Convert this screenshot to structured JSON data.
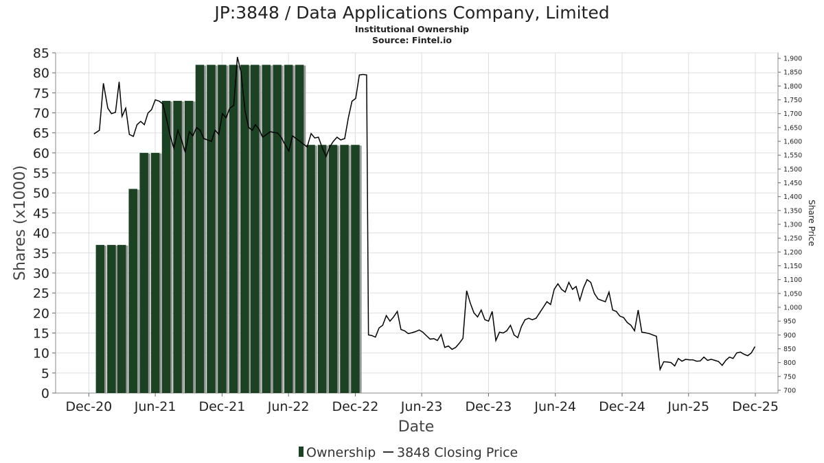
{
  "chart_data": {
    "type": "bar",
    "title": "JP:3848 / Data Applications Company, Limited",
    "subtitle1": "Institutional Ownership",
    "subtitle2": "Source: Fintel.io",
    "xlabel": "Date",
    "ylabel": "Shares (x1000)",
    "y2label": "Share Price",
    "x_ticks": [
      "Dec-20",
      "Jun-21",
      "Dec-21",
      "Jun-22",
      "Dec-22",
      "Jun-23",
      "Dec-23",
      "Jun-24",
      "Dec-24",
      "Jun-25",
      "Dec-25"
    ],
    "y_ticks": [
      "0",
      "5",
      "10",
      "15",
      "20",
      "25",
      "30",
      "35",
      "40",
      "45",
      "50",
      "55",
      "60",
      "65",
      "70",
      "75",
      "80",
      "85"
    ],
    "y2_ticks": [
      "700",
      "750",
      "800",
      "850",
      "900",
      "950",
      "1,000",
      "1,050",
      "1,100",
      "1,150",
      "1,200",
      "1,250",
      "1,300",
      "1,350",
      "1,400",
      "1,450",
      "1,500",
      "1,550",
      "1,600",
      "1,650",
      "1,700",
      "1,750",
      "1,800",
      "1,850",
      "1,900"
    ],
    "ylim": [
      0,
      85
    ],
    "y2lim": [
      690,
      1920
    ],
    "grid": true,
    "legend_position": "bottom",
    "legend": [
      "Ownership",
      "3848 Closing Price"
    ],
    "colors": {
      "bar": "#1a4223",
      "bar_shadow": "#9a9a9a",
      "line": "#000000",
      "grid": "#dddddd"
    },
    "ownership": [
      {
        "date": "2021-01-01",
        "value": 37
      },
      {
        "date": "2021-02-01",
        "value": 37
      },
      {
        "date": "2021-03-01",
        "value": 37
      },
      {
        "date": "2021-04-01",
        "value": 51
      },
      {
        "date": "2021-05-01",
        "value": 60
      },
      {
        "date": "2021-06-01",
        "value": 60
      },
      {
        "date": "2021-07-01",
        "value": 73
      },
      {
        "date": "2021-08-01",
        "value": 73
      },
      {
        "date": "2021-09-01",
        "value": 73
      },
      {
        "date": "2021-10-01",
        "value": 82
      },
      {
        "date": "2021-11-01",
        "value": 82
      },
      {
        "date": "2021-12-01",
        "value": 82
      },
      {
        "date": "2022-01-01",
        "value": 82
      },
      {
        "date": "2022-02-01",
        "value": 82
      },
      {
        "date": "2022-03-01",
        "value": 82
      },
      {
        "date": "2022-04-01",
        "value": 82
      },
      {
        "date": "2022-05-01",
        "value": 82
      },
      {
        "date": "2022-06-01",
        "value": 82
      },
      {
        "date": "2022-07-01",
        "value": 82
      },
      {
        "date": "2022-08-01",
        "value": 62
      },
      {
        "date": "2022-09-01",
        "value": 62
      },
      {
        "date": "2022-10-01",
        "value": 62
      },
      {
        "date": "2022-11-01",
        "value": 62
      },
      {
        "date": "2022-12-01",
        "value": 62
      }
    ],
    "price": [
      {
        "date": "2020-12-15",
        "value": 1627
      },
      {
        "date": "2020-12-30",
        "value": 1640
      },
      {
        "date": "2021-01-10",
        "value": 1810
      },
      {
        "date": "2021-01-22",
        "value": 1720
      },
      {
        "date": "2021-02-01",
        "value": 1700
      },
      {
        "date": "2021-02-12",
        "value": 1705
      },
      {
        "date": "2021-02-22",
        "value": 1815
      },
      {
        "date": "2021-03-02",
        "value": 1690
      },
      {
        "date": "2021-03-12",
        "value": 1720
      },
      {
        "date": "2021-03-22",
        "value": 1625
      },
      {
        "date": "2021-04-02",
        "value": 1618
      },
      {
        "date": "2021-04-12",
        "value": 1660
      },
      {
        "date": "2021-04-22",
        "value": 1672
      },
      {
        "date": "2021-05-02",
        "value": 1660
      },
      {
        "date": "2021-05-12",
        "value": 1702
      },
      {
        "date": "2021-05-22",
        "value": 1715
      },
      {
        "date": "2021-06-01",
        "value": 1750
      },
      {
        "date": "2021-06-12",
        "value": 1745
      },
      {
        "date": "2021-06-22",
        "value": 1735
      },
      {
        "date": "2021-07-02",
        "value": 1680
      },
      {
        "date": "2021-07-12",
        "value": 1620
      },
      {
        "date": "2021-07-22",
        "value": 1575
      },
      {
        "date": "2021-08-02",
        "value": 1640
      },
      {
        "date": "2021-08-12",
        "value": 1605
      },
      {
        "date": "2021-08-22",
        "value": 1560
      },
      {
        "date": "2021-09-02",
        "value": 1635
      },
      {
        "date": "2021-09-12",
        "value": 1620
      },
      {
        "date": "2021-09-22",
        "value": 1650
      },
      {
        "date": "2021-10-02",
        "value": 1640
      },
      {
        "date": "2021-10-12",
        "value": 1610
      },
      {
        "date": "2021-10-22",
        "value": 1605
      },
      {
        "date": "2021-11-02",
        "value": 1600
      },
      {
        "date": "2021-11-12",
        "value": 1640
      },
      {
        "date": "2021-11-22",
        "value": 1625
      },
      {
        "date": "2021-12-02",
        "value": 1700
      },
      {
        "date": "2021-12-12",
        "value": 1685
      },
      {
        "date": "2021-12-22",
        "value": 1720
      },
      {
        "date": "2022-01-02",
        "value": 1730
      },
      {
        "date": "2022-01-12",
        "value": 1905
      },
      {
        "date": "2022-01-22",
        "value": 1850
      },
      {
        "date": "2022-02-02",
        "value": 1710
      },
      {
        "date": "2022-02-12",
        "value": 1650
      },
      {
        "date": "2022-02-22",
        "value": 1640
      },
      {
        "date": "2022-03-02",
        "value": 1660
      },
      {
        "date": "2022-03-12",
        "value": 1645
      },
      {
        "date": "2022-03-22",
        "value": 1615
      },
      {
        "date": "2022-04-02",
        "value": 1625
      },
      {
        "date": "2022-04-12",
        "value": 1635
      },
      {
        "date": "2022-04-22",
        "value": 1632
      },
      {
        "date": "2022-05-02",
        "value": 1630
      },
      {
        "date": "2022-05-12",
        "value": 1615
      },
      {
        "date": "2022-05-22",
        "value": 1590
      },
      {
        "date": "2022-06-02",
        "value": 1565
      },
      {
        "date": "2022-06-12",
        "value": 1620
      },
      {
        "date": "2022-06-22",
        "value": 1610
      },
      {
        "date": "2022-07-02",
        "value": 1600
      },
      {
        "date": "2022-07-12",
        "value": 1590
      },
      {
        "date": "2022-07-22",
        "value": 1580
      },
      {
        "date": "2022-08-02",
        "value": 1628
      },
      {
        "date": "2022-08-12",
        "value": 1612
      },
      {
        "date": "2022-08-22",
        "value": 1615
      },
      {
        "date": "2022-09-02",
        "value": 1575
      },
      {
        "date": "2022-09-12",
        "value": 1545
      },
      {
        "date": "2022-09-22",
        "value": 1580
      },
      {
        "date": "2022-10-02",
        "value": 1600
      },
      {
        "date": "2022-10-12",
        "value": 1615
      },
      {
        "date": "2022-10-22",
        "value": 1605
      },
      {
        "date": "2022-11-02",
        "value": 1610
      },
      {
        "date": "2022-11-12",
        "value": 1685
      },
      {
        "date": "2022-11-22",
        "value": 1745
      },
      {
        "date": "2022-12-02",
        "value": 1755
      },
      {
        "date": "2022-12-12",
        "value": 1840
      },
      {
        "date": "2022-12-22",
        "value": 1842
      },
      {
        "date": "2023-01-01",
        "value": 1840
      },
      {
        "date": "2023-01-06",
        "value": 900
      },
      {
        "date": "2023-01-15",
        "value": 898
      },
      {
        "date": "2023-01-25",
        "value": 892
      },
      {
        "date": "2023-02-04",
        "value": 925
      },
      {
        "date": "2023-02-14",
        "value": 935
      },
      {
        "date": "2023-02-24",
        "value": 970
      },
      {
        "date": "2023-03-06",
        "value": 950
      },
      {
        "date": "2023-03-16",
        "value": 965
      },
      {
        "date": "2023-03-26",
        "value": 985
      },
      {
        "date": "2023-04-05",
        "value": 920
      },
      {
        "date": "2023-04-15",
        "value": 915
      },
      {
        "date": "2023-04-25",
        "value": 905
      },
      {
        "date": "2023-05-05",
        "value": 908
      },
      {
        "date": "2023-05-15",
        "value": 912
      },
      {
        "date": "2023-05-25",
        "value": 918
      },
      {
        "date": "2023-06-04",
        "value": 910
      },
      {
        "date": "2023-06-14",
        "value": 897
      },
      {
        "date": "2023-06-24",
        "value": 885
      },
      {
        "date": "2023-07-04",
        "value": 887
      },
      {
        "date": "2023-07-14",
        "value": 880
      },
      {
        "date": "2023-07-24",
        "value": 902
      },
      {
        "date": "2023-08-03",
        "value": 855
      },
      {
        "date": "2023-08-13",
        "value": 860
      },
      {
        "date": "2023-08-23",
        "value": 848
      },
      {
        "date": "2023-09-02",
        "value": 855
      },
      {
        "date": "2023-09-12",
        "value": 870
      },
      {
        "date": "2023-09-22",
        "value": 888
      },
      {
        "date": "2023-10-02",
        "value": 1060
      },
      {
        "date": "2023-10-12",
        "value": 1015
      },
      {
        "date": "2023-10-22",
        "value": 980
      },
      {
        "date": "2023-11-01",
        "value": 965
      },
      {
        "date": "2023-11-11",
        "value": 990
      },
      {
        "date": "2023-11-21",
        "value": 955
      },
      {
        "date": "2023-12-01",
        "value": 950
      },
      {
        "date": "2023-12-11",
        "value": 985
      },
      {
        "date": "2023-12-21",
        "value": 880
      },
      {
        "date": "2023-12-31",
        "value": 910
      },
      {
        "date": "2024-01-10",
        "value": 907
      },
      {
        "date": "2024-01-20",
        "value": 915
      },
      {
        "date": "2024-01-30",
        "value": 935
      },
      {
        "date": "2024-02-09",
        "value": 900
      },
      {
        "date": "2024-02-19",
        "value": 890
      },
      {
        "date": "2024-02-29",
        "value": 930
      },
      {
        "date": "2024-03-10",
        "value": 955
      },
      {
        "date": "2024-03-20",
        "value": 960
      },
      {
        "date": "2024-03-30",
        "value": 955
      },
      {
        "date": "2024-04-09",
        "value": 960
      },
      {
        "date": "2024-04-19",
        "value": 980
      },
      {
        "date": "2024-04-29",
        "value": 1000
      },
      {
        "date": "2024-05-09",
        "value": 1020
      },
      {
        "date": "2024-05-19",
        "value": 1010
      },
      {
        "date": "2024-05-29",
        "value": 1065
      },
      {
        "date": "2024-06-08",
        "value": 1085
      },
      {
        "date": "2024-06-18",
        "value": 1065
      },
      {
        "date": "2024-06-28",
        "value": 1055
      },
      {
        "date": "2024-07-08",
        "value": 1090
      },
      {
        "date": "2024-07-18",
        "value": 1065
      },
      {
        "date": "2024-07-28",
        "value": 1075
      },
      {
        "date": "2024-08-07",
        "value": 1025
      },
      {
        "date": "2024-08-17",
        "value": 1070
      },
      {
        "date": "2024-08-27",
        "value": 1100
      },
      {
        "date": "2024-09-06",
        "value": 1090
      },
      {
        "date": "2024-09-16",
        "value": 1050
      },
      {
        "date": "2024-09-26",
        "value": 1030
      },
      {
        "date": "2024-10-06",
        "value": 1025
      },
      {
        "date": "2024-10-16",
        "value": 1020
      },
      {
        "date": "2024-10-26",
        "value": 1055
      },
      {
        "date": "2024-11-05",
        "value": 990
      },
      {
        "date": "2024-11-15",
        "value": 985
      },
      {
        "date": "2024-11-25",
        "value": 968
      },
      {
        "date": "2024-12-05",
        "value": 963
      },
      {
        "date": "2024-12-15",
        "value": 945
      },
      {
        "date": "2024-12-25",
        "value": 935
      },
      {
        "date": "2025-01-04",
        "value": 915
      },
      {
        "date": "2025-01-14",
        "value": 990
      },
      {
        "date": "2025-01-24",
        "value": 910
      },
      {
        "date": "2025-02-03",
        "value": 908
      },
      {
        "date": "2025-02-13",
        "value": 905
      },
      {
        "date": "2025-02-23",
        "value": 900
      },
      {
        "date": "2025-03-05",
        "value": 895
      },
      {
        "date": "2025-03-15",
        "value": 775
      },
      {
        "date": "2025-03-25",
        "value": 803
      },
      {
        "date": "2025-04-04",
        "value": 802
      },
      {
        "date": "2025-04-14",
        "value": 800
      },
      {
        "date": "2025-04-24",
        "value": 788
      },
      {
        "date": "2025-05-04",
        "value": 815
      },
      {
        "date": "2025-05-14",
        "value": 805
      },
      {
        "date": "2025-05-24",
        "value": 812
      },
      {
        "date": "2025-06-03",
        "value": 810
      },
      {
        "date": "2025-06-13",
        "value": 810
      },
      {
        "date": "2025-06-23",
        "value": 805
      },
      {
        "date": "2025-07-03",
        "value": 806
      },
      {
        "date": "2025-07-13",
        "value": 820
      },
      {
        "date": "2025-07-23",
        "value": 808
      },
      {
        "date": "2025-08-02",
        "value": 812
      },
      {
        "date": "2025-08-12",
        "value": 808
      },
      {
        "date": "2025-08-22",
        "value": 804
      },
      {
        "date": "2025-09-01",
        "value": 790
      },
      {
        "date": "2025-09-11",
        "value": 808
      },
      {
        "date": "2025-09-21",
        "value": 820
      },
      {
        "date": "2025-10-01",
        "value": 815
      },
      {
        "date": "2025-10-11",
        "value": 835
      },
      {
        "date": "2025-10-21",
        "value": 838
      },
      {
        "date": "2025-10-31",
        "value": 830
      },
      {
        "date": "2025-11-10",
        "value": 825
      },
      {
        "date": "2025-11-20",
        "value": 835
      },
      {
        "date": "2025-11-30",
        "value": 858
      }
    ]
  }
}
